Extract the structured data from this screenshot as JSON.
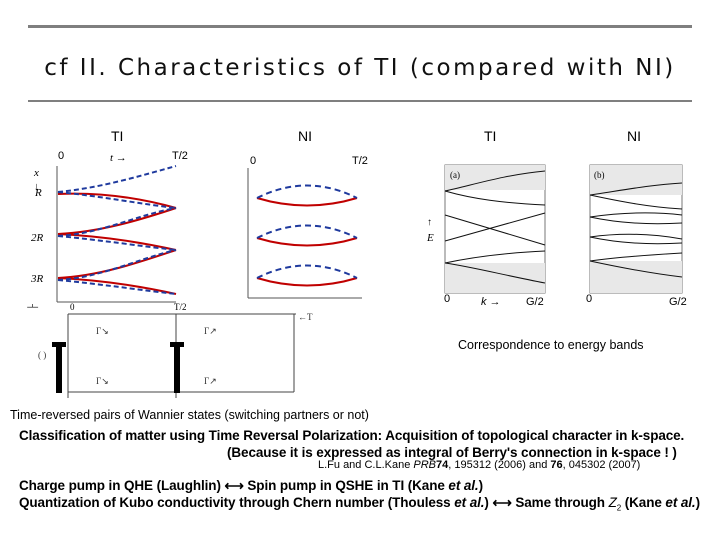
{
  "slide": {
    "title": "cf II. Characteristics of TI (compared with NI)"
  },
  "panels": {
    "wannier_ti": {
      "label": "TI",
      "t_start": "0",
      "t_end": "T/2",
      "t_axis": "t →",
      "x_axis": "x",
      "rows": [
        "R",
        "2R",
        "3R"
      ]
    },
    "wannier_ni": {
      "label": "NI",
      "t_start": "0",
      "t_end": "T/2"
    },
    "band_ti": {
      "label": "TI",
      "tag": "(a)",
      "y_axis": "E",
      "k_start": "0",
      "k_axis": "k →",
      "k_end": "G/2"
    },
    "band_ni": {
      "label": "NI",
      "tag": "(b)",
      "k_start": "0",
      "k_end": "G/2"
    }
  },
  "captions": {
    "energy_bands": "Correspondence to energy bands",
    "wannier_pairs": "Time-reversed pairs of Wannier states (switching partners or not)"
  },
  "body": {
    "classification": "Classification of matter using Time Reversal Polarization: Acquisition of topological character in k-space.",
    "berry_note": "(Because it is expressed as integral of Berry's connection in k-space ! )",
    "ref_prefix": "L.Fu and C.L.Kane ",
    "ref_journal": "PRB",
    "ref_vol1": "74",
    "ref_mid": ", 195312 (2006) and ",
    "ref_vol2": "76",
    "ref_end": ", 045302 (2007)",
    "charge_pump": "Charge pump in QHE (Laughlin) ⟷ Spin pump in QSHE in TI (Kane ",
    "charge_pump_etal": "et al.",
    "charge_pump_close": ")",
    "kubo_a": "Quantization of Kubo conductivity through Chern number (Thouless ",
    "kubo_etal": "et al.",
    "kubo_b": ") ⟷ Same through ",
    "kubo_z2": "Z",
    "kubo_z2_sub": "2",
    "kubo_c": " (Kane ",
    "kubo_etal2": "et al.",
    "kubo_d": ")"
  },
  "colors": {
    "rule": "#7f7f7f",
    "red": "#c00000",
    "blue": "#1f3a9e",
    "band_fill": "#e8e8e8"
  }
}
